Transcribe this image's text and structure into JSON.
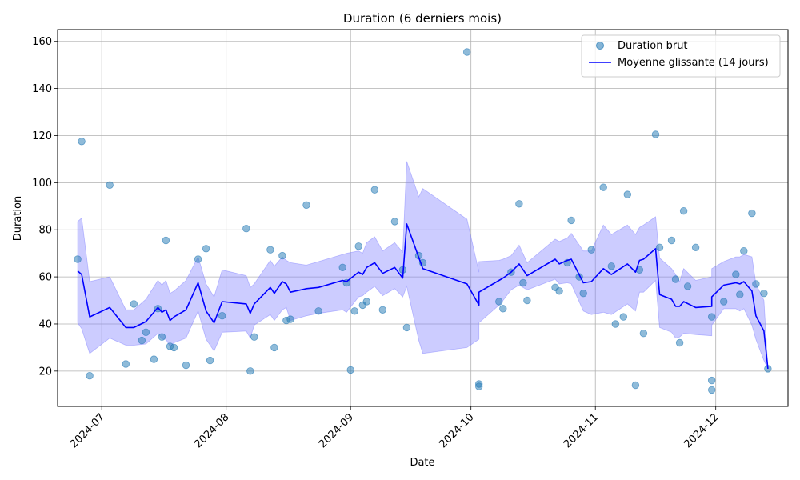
{
  "chart_data": {
    "type": "scatter",
    "title": "Duration (6 derniers mois)",
    "xlabel": "Date",
    "ylabel": "Duration",
    "xlim": [
      "2024-06-20",
      "2024-12-19"
    ],
    "ylim": [
      5,
      165
    ],
    "grid": true,
    "legend_position": "top-right",
    "x_ticks": [
      "2024-07",
      "2024-08",
      "2024-09",
      "2024-10",
      "2024-11",
      "2024-12"
    ],
    "x_tick_dates": [
      "2024-07-01",
      "2024-08-01",
      "2024-09-01",
      "2024-10-01",
      "2024-11-01",
      "2024-12-01"
    ],
    "y_ticks": [
      20,
      40,
      60,
      80,
      100,
      120,
      140,
      160
    ],
    "colors": {
      "points": "#1f77b4",
      "line": "#0000ff",
      "band": "#8080ff"
    },
    "series": [
      {
        "name": "Duration brut",
        "kind": "scatter",
        "points": [
          [
            "2024-06-25",
            67.5
          ],
          [
            "2024-06-26",
            117.5
          ],
          [
            "2024-06-28",
            18
          ],
          [
            "2024-07-03",
            99
          ],
          [
            "2024-07-07",
            23
          ],
          [
            "2024-07-09",
            48.5
          ],
          [
            "2024-07-11",
            33
          ],
          [
            "2024-07-12",
            36.5
          ],
          [
            "2024-07-14",
            25
          ],
          [
            "2024-07-15",
            46.5
          ],
          [
            "2024-07-16",
            34.5
          ],
          [
            "2024-07-17",
            75.5
          ],
          [
            "2024-07-18",
            30.5
          ],
          [
            "2024-07-19",
            30
          ],
          [
            "2024-07-22",
            22.5
          ],
          [
            "2024-07-25",
            67.5
          ],
          [
            "2024-07-27",
            72
          ],
          [
            "2024-07-28",
            24.5
          ],
          [
            "2024-07-31",
            43.5
          ],
          [
            "2024-08-06",
            80.5
          ],
          [
            "2024-08-07",
            20
          ],
          [
            "2024-08-08",
            34.5
          ],
          [
            "2024-08-12",
            71.5
          ],
          [
            "2024-08-13",
            30
          ],
          [
            "2024-08-15",
            69
          ],
          [
            "2024-08-16",
            41.5
          ],
          [
            "2024-08-17",
            42
          ],
          [
            "2024-08-21",
            90.5
          ],
          [
            "2024-08-24",
            45.5
          ],
          [
            "2024-08-30",
            64
          ],
          [
            "2024-08-31",
            57.5
          ],
          [
            "2024-09-01",
            20.5
          ],
          [
            "2024-09-02",
            45.5
          ],
          [
            "2024-09-03",
            73
          ],
          [
            "2024-09-04",
            48
          ],
          [
            "2024-09-05",
            49.5
          ],
          [
            "2024-09-07",
            97
          ],
          [
            "2024-09-09",
            46
          ],
          [
            "2024-09-12",
            83.5
          ],
          [
            "2024-09-14",
            63
          ],
          [
            "2024-09-15",
            38.5
          ],
          [
            "2024-09-18",
            69
          ],
          [
            "2024-09-19",
            66
          ],
          [
            "2024-09-30",
            155.5
          ],
          [
            "2024-10-03",
            14.5
          ],
          [
            "2024-10-03",
            13.5
          ],
          [
            "2024-10-08",
            49.5
          ],
          [
            "2024-10-09",
            46.5
          ],
          [
            "2024-10-11",
            62
          ],
          [
            "2024-10-13",
            91
          ],
          [
            "2024-10-14",
            57.5
          ],
          [
            "2024-10-15",
            50
          ],
          [
            "2024-10-22",
            55.5
          ],
          [
            "2024-10-23",
            54
          ],
          [
            "2024-10-25",
            66
          ],
          [
            "2024-10-26",
            84
          ],
          [
            "2024-10-28",
            60
          ],
          [
            "2024-10-29",
            53
          ],
          [
            "2024-10-31",
            71.5
          ],
          [
            "2024-11-03",
            98
          ],
          [
            "2024-11-05",
            64.5
          ],
          [
            "2024-11-06",
            40
          ],
          [
            "2024-11-08",
            43
          ],
          [
            "2024-11-09",
            95
          ],
          [
            "2024-11-11",
            14
          ],
          [
            "2024-11-12",
            63
          ],
          [
            "2024-11-13",
            36
          ],
          [
            "2024-11-16",
            120.5
          ],
          [
            "2024-11-17",
            72.5
          ],
          [
            "2024-11-20",
            75.5
          ],
          [
            "2024-11-21",
            59
          ],
          [
            "2024-11-22",
            32
          ],
          [
            "2024-11-23",
            88
          ],
          [
            "2024-11-24",
            56
          ],
          [
            "2024-11-26",
            72.5
          ],
          [
            "2024-11-30",
            43
          ],
          [
            "2024-11-30",
            16
          ],
          [
            "2024-11-30",
            12
          ],
          [
            "2024-12-03",
            49.5
          ],
          [
            "2024-12-06",
            61
          ],
          [
            "2024-12-07",
            52.5
          ],
          [
            "2024-12-08",
            71
          ],
          [
            "2024-12-10",
            87
          ],
          [
            "2024-12-11",
            57
          ],
          [
            "2024-12-13",
            53
          ],
          [
            "2024-12-14",
            21
          ]
        ]
      },
      {
        "name": "Moyenne glissante (14 jours)",
        "kind": "line",
        "points": [
          [
            "2024-06-25",
            62.5
          ],
          [
            "2024-06-26",
            61
          ],
          [
            "2024-06-28",
            43
          ],
          [
            "2024-07-03",
            47
          ],
          [
            "2024-07-07",
            38.5
          ],
          [
            "2024-07-09",
            38.5
          ],
          [
            "2024-07-12",
            41
          ],
          [
            "2024-07-15",
            47
          ],
          [
            "2024-07-16",
            45
          ],
          [
            "2024-07-17",
            46
          ],
          [
            "2024-07-18",
            41.5
          ],
          [
            "2024-07-19",
            43
          ],
          [
            "2024-07-22",
            46
          ],
          [
            "2024-07-25",
            57.5
          ],
          [
            "2024-07-27",
            45.5
          ],
          [
            "2024-07-29",
            40.5
          ],
          [
            "2024-07-31",
            49.5
          ],
          [
            "2024-08-06",
            48.5
          ],
          [
            "2024-08-07",
            44.5
          ],
          [
            "2024-08-08",
            48.5
          ],
          [
            "2024-08-12",
            55.5
          ],
          [
            "2024-08-13",
            53
          ],
          [
            "2024-08-15",
            58
          ],
          [
            "2024-08-16",
            57
          ],
          [
            "2024-08-17",
            53.5
          ],
          [
            "2024-08-21",
            55
          ],
          [
            "2024-08-24",
            55.5
          ],
          [
            "2024-08-30",
            58.5
          ],
          [
            "2024-08-31",
            58
          ],
          [
            "2024-09-03",
            62
          ],
          [
            "2024-09-04",
            61
          ],
          [
            "2024-09-05",
            64
          ],
          [
            "2024-09-07",
            66
          ],
          [
            "2024-09-09",
            61.5
          ],
          [
            "2024-09-12",
            64
          ],
          [
            "2024-09-14",
            59.5
          ],
          [
            "2024-09-15",
            82.5
          ],
          [
            "2024-09-19",
            63.5
          ],
          [
            "2024-09-30",
            57
          ],
          [
            "2024-10-03",
            48
          ],
          [
            "2024-10-03",
            53.5
          ],
          [
            "2024-10-08",
            58.5
          ],
          [
            "2024-10-09",
            59.5
          ],
          [
            "2024-10-11",
            62
          ],
          [
            "2024-10-13",
            65.5
          ],
          [
            "2024-10-15",
            60.5
          ],
          [
            "2024-10-22",
            67.5
          ],
          [
            "2024-10-23",
            65.5
          ],
          [
            "2024-10-25",
            67
          ],
          [
            "2024-10-26",
            67.5
          ],
          [
            "2024-10-29",
            57.5
          ],
          [
            "2024-10-31",
            58
          ],
          [
            "2024-11-03",
            63.5
          ],
          [
            "2024-11-05",
            61
          ],
          [
            "2024-11-09",
            65.5
          ],
          [
            "2024-11-11",
            62
          ],
          [
            "2024-11-12",
            67
          ],
          [
            "2024-11-13",
            67.5
          ],
          [
            "2024-11-16",
            72
          ],
          [
            "2024-11-17",
            52.5
          ],
          [
            "2024-11-20",
            50.5
          ],
          [
            "2024-11-21",
            47.5
          ],
          [
            "2024-11-22",
            47.5
          ],
          [
            "2024-11-23",
            49.5
          ],
          [
            "2024-11-26",
            47
          ],
          [
            "2024-11-30",
            47.5
          ],
          [
            "2024-11-30",
            51.5
          ],
          [
            "2024-12-03",
            56.5
          ],
          [
            "2024-12-06",
            57.5
          ],
          [
            "2024-12-07",
            57
          ],
          [
            "2024-12-08",
            58
          ],
          [
            "2024-12-10",
            54
          ],
          [
            "2024-12-11",
            43.5
          ],
          [
            "2024-12-13",
            37
          ],
          [
            "2024-12-14",
            21
          ]
        ]
      }
    ],
    "band": {
      "kind": "fill_between",
      "points": [
        [
          "2024-06-25",
          83.5,
          40.5
        ],
        [
          "2024-06-26",
          85,
          38
        ],
        [
          "2024-06-28",
          58,
          27.5
        ],
        [
          "2024-07-03",
          60,
          34
        ],
        [
          "2024-07-07",
          46,
          31
        ],
        [
          "2024-07-09",
          46,
          31
        ],
        [
          "2024-07-12",
          50.5,
          31.5
        ],
        [
          "2024-07-15",
          58.5,
          36
        ],
        [
          "2024-07-16",
          56.5,
          33.5
        ],
        [
          "2024-07-17",
          58.5,
          33.5
        ],
        [
          "2024-07-18",
          53,
          30.5
        ],
        [
          "2024-07-19",
          54,
          32
        ],
        [
          "2024-07-22",
          58.5,
          34
        ],
        [
          "2024-07-25",
          68.5,
          45.5
        ],
        [
          "2024-07-27",
          57,
          33.5
        ],
        [
          "2024-07-29",
          51.5,
          28.5
        ],
        [
          "2024-07-31",
          63,
          36.5
        ],
        [
          "2024-08-06",
          60.5,
          37
        ],
        [
          "2024-08-07",
          55.5,
          34
        ],
        [
          "2024-08-08",
          57,
          39.5
        ],
        [
          "2024-08-12",
          67,
          44
        ],
        [
          "2024-08-13",
          64.5,
          41.5
        ],
        [
          "2024-08-15",
          68.5,
          46
        ],
        [
          "2024-08-16",
          67,
          47
        ],
        [
          "2024-08-17",
          66,
          41.5
        ],
        [
          "2024-08-21",
          65,
          43.5
        ],
        [
          "2024-08-24",
          66.5,
          44.5
        ],
        [
          "2024-08-30",
          69.5,
          46
        ],
        [
          "2024-08-31",
          70,
          45
        ],
        [
          "2024-09-03",
          71,
          51.5
        ],
        [
          "2024-09-04",
          70,
          52
        ],
        [
          "2024-09-05",
          74.5,
          53.5
        ],
        [
          "2024-09-07",
          77,
          56
        ],
        [
          "2024-09-09",
          71,
          52
        ],
        [
          "2024-09-12",
          74.5,
          55
        ],
        [
          "2024-09-14",
          70.5,
          51.5
        ],
        [
          "2024-09-15",
          109,
          56
        ],
        [
          "2024-09-18",
          94,
          33
        ],
        [
          "2024-09-19",
          97.5,
          27.5
        ],
        [
          "2024-09-30",
          84.5,
          30
        ],
        [
          "2024-10-03",
          62,
          33.5
        ],
        [
          "2024-10-03",
          66.5,
          40.5
        ],
        [
          "2024-10-08",
          67,
          48
        ],
        [
          "2024-10-09",
          67.5,
          50
        ],
        [
          "2024-10-11",
          69,
          54.5
        ],
        [
          "2024-10-13",
          73.5,
          56.5
        ],
        [
          "2024-10-15",
          66,
          54.5
        ],
        [
          "2024-10-22",
          76,
          59
        ],
        [
          "2024-10-23",
          75,
          57
        ],
        [
          "2024-10-25",
          76.5,
          57.5
        ],
        [
          "2024-10-26",
          78.5,
          57
        ],
        [
          "2024-10-29",
          71,
          45.5
        ],
        [
          "2024-10-31",
          71,
          44
        ],
        [
          "2024-11-03",
          82,
          45
        ],
        [
          "2024-11-05",
          78,
          44
        ],
        [
          "2024-11-09",
          82,
          48.5
        ],
        [
          "2024-11-11",
          78,
          45.5
        ],
        [
          "2024-11-12",
          81,
          53.5
        ],
        [
          "2024-11-13",
          82,
          53.5
        ],
        [
          "2024-11-16",
          85.5,
          58.5
        ],
        [
          "2024-11-17",
          68,
          38.5
        ],
        [
          "2024-11-20",
          63.5,
          36.5
        ],
        [
          "2024-11-21",
          61,
          34
        ],
        [
          "2024-11-22",
          58,
          34.5
        ],
        [
          "2024-11-23",
          63.5,
          36
        ],
        [
          "2024-11-26",
          58.5,
          35.5
        ],
        [
          "2024-11-30",
          60,
          35
        ],
        [
          "2024-11-30",
          63.5,
          39.5
        ],
        [
          "2024-12-03",
          66.5,
          46.5
        ],
        [
          "2024-12-06",
          68.5,
          46.5
        ],
        [
          "2024-12-07",
          68.5,
          45.5
        ],
        [
          "2024-12-08",
          69.5,
          46.5
        ],
        [
          "2024-12-10",
          68.5,
          39.5
        ],
        [
          "2024-12-11",
          57,
          33.5
        ],
        [
          "2024-12-13",
          50,
          24.5
        ],
        [
          "2024-12-14",
          21,
          21
        ]
      ]
    }
  }
}
